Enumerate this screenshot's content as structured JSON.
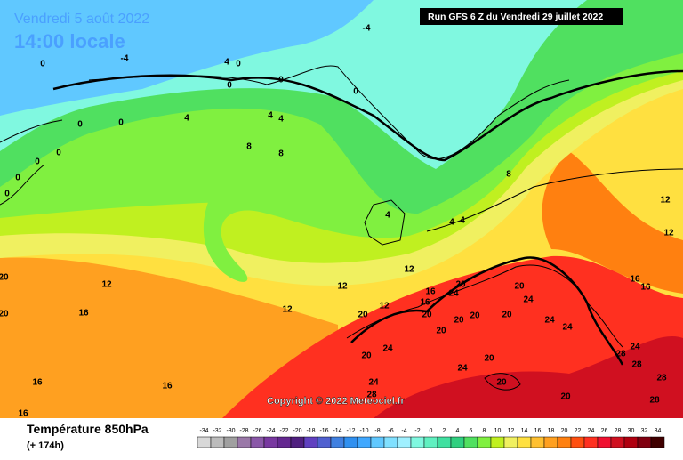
{
  "header": {
    "date": "Vendredi 5 août 2022",
    "time": "14:00 locale",
    "run": "Run GFS 6 Z du Vendredi 29 juillet 2022"
  },
  "copyright": "Copyright © 2022 Meteociel.fr",
  "footer": {
    "title": "Température 850hPa",
    "lead": "(+ 174h)"
  },
  "legend": {
    "ticks": [
      -34,
      -32,
      -30,
      -28,
      -26,
      -24,
      -22,
      -20,
      -18,
      -16,
      -14,
      -12,
      -10,
      -8,
      -6,
      -4,
      -2,
      0,
      2,
      4,
      6,
      8,
      10,
      12,
      14,
      16,
      18,
      20,
      22,
      24,
      26,
      28,
      30,
      32,
      34
    ],
    "colors": [
      "#d8d8d8",
      "#bcbcbc",
      "#a0a0a0",
      "#9a78a8",
      "#8a58a8",
      "#7838a0",
      "#642890",
      "#502080",
      "#6040c0",
      "#5060d0",
      "#4080e0",
      "#3090f0",
      "#40a8ff",
      "#60c8ff",
      "#80e0ff",
      "#a0f0ff",
      "#80f8e0",
      "#60f0c0",
      "#40e0a0",
      "#30d080",
      "#50e060",
      "#80f040",
      "#c0f020",
      "#f0f060",
      "#ffe040",
      "#ffc030",
      "#ffa020",
      "#ff8010",
      "#ff5010",
      "#ff3020",
      "#f01030",
      "#d01020",
      "#b00010",
      "#800010",
      "#400000"
    ]
  },
  "contour_labels": [
    0,
    -4,
    -4,
    4,
    0,
    0,
    0,
    0,
    4,
    4,
    4,
    8,
    8,
    0,
    0,
    0,
    0,
    0,
    0,
    4,
    4,
    4,
    8,
    12,
    12,
    12,
    12,
    12,
    12,
    12,
    16,
    16,
    16,
    16,
    16,
    16,
    16,
    16,
    24,
    20,
    20,
    24,
    20,
    24,
    20,
    20,
    20,
    20,
    24,
    20,
    24,
    20,
    24,
    24,
    20,
    20,
    24,
    28,
    28,
    28,
    28,
    28,
    20,
    20,
    20
  ]
}
